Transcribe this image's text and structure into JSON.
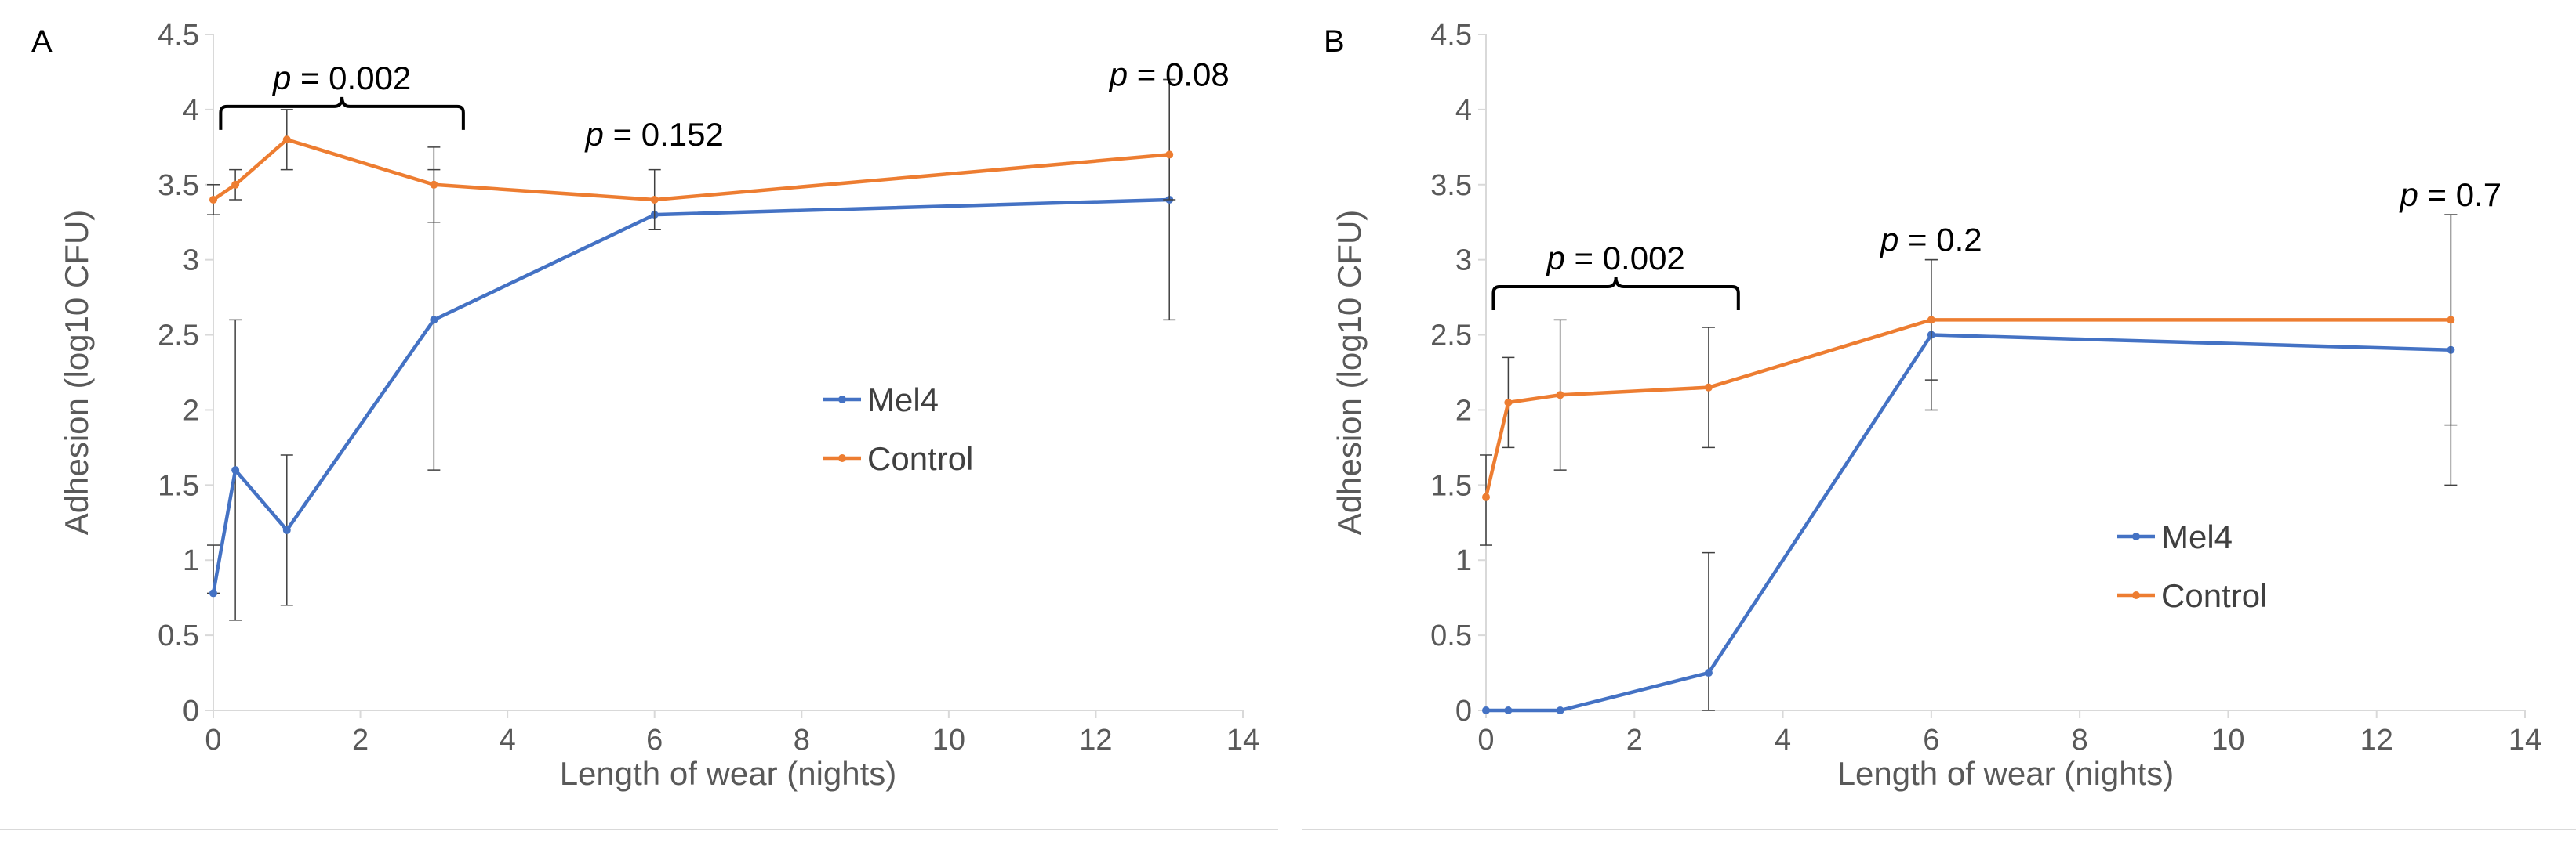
{
  "colors": {
    "mel4": "#4472C4",
    "control": "#ED7D31",
    "axis": "#d9d9d9",
    "text": "#595959",
    "errorbar": "#404040"
  },
  "chart_data": [
    {
      "type": "line",
      "panel_label": "A",
      "xlabel": "Length of wear (nights)",
      "ylabel": "Adhesion (log10 CFU)",
      "xlim": [
        0,
        14
      ],
      "ylim": [
        0,
        4.5
      ],
      "x_ticks": [
        "0",
        "2",
        "4",
        "6",
        "8",
        "10",
        "12",
        "14"
      ],
      "y_ticks": [
        "0",
        "0.5",
        "1",
        "1.5",
        "2",
        "2.5",
        "3",
        "3.5",
        "4",
        "4.5"
      ],
      "grid": false,
      "legend_position": "center-right",
      "series": [
        {
          "name": "Mel4",
          "x": [
            0,
            0.3,
            1,
            3,
            6,
            13
          ],
          "values": [
            0.78,
            1.6,
            1.2,
            2.6,
            3.3,
            3.4
          ],
          "err_low": [
            0.78,
            0.6,
            0.7,
            1.6,
            3.2,
            2.6
          ],
          "err_high": [
            1.1,
            2.6,
            1.7,
            3.6,
            3.4,
            4.2
          ]
        },
        {
          "name": "Control",
          "x": [
            0,
            0.3,
            1,
            3,
            6,
            13
          ],
          "values": [
            3.4,
            3.5,
            3.8,
            3.5,
            3.4,
            3.7
          ],
          "err_low": [
            3.3,
            3.4,
            3.6,
            3.25,
            3.2,
            3.4
          ],
          "err_high": [
            3.5,
            3.6,
            4.0,
            3.75,
            3.6,
            4.2
          ]
        }
      ],
      "annotations": [
        {
          "italic": "p",
          "text": " = 0.002",
          "bracket": [
            0.1,
            3.4
          ],
          "y": 4.0
        },
        {
          "italic": "p",
          "text": " = 0.152",
          "at_x": 6,
          "y": 3.8
        },
        {
          "italic": "p",
          "text": " = 0.08",
          "at_x": 13,
          "y": 4.2
        }
      ]
    },
    {
      "type": "line",
      "panel_label": "B",
      "xlabel": "Length of wear (nights)",
      "ylabel": "Adhesion (log10 CFU)",
      "xlim": [
        0,
        14
      ],
      "ylim": [
        0,
        4.5
      ],
      "x_ticks": [
        "0",
        "2",
        "4",
        "6",
        "8",
        "10",
        "12",
        "14"
      ],
      "y_ticks": [
        "0",
        "0.5",
        "1",
        "1.5",
        "2",
        "2.5",
        "3",
        "3.5",
        "4",
        "4.5"
      ],
      "grid": false,
      "legend_position": "center-right",
      "series": [
        {
          "name": "Mel4",
          "x": [
            0,
            0.3,
            1,
            3,
            6,
            13
          ],
          "values": [
            0,
            0,
            0,
            0.25,
            2.5,
            2.4
          ],
          "err_low": [
            0,
            0,
            0,
            0,
            2.0,
            1.5
          ],
          "err_high": [
            0,
            0,
            0,
            1.05,
            3.0,
            3.3
          ]
        },
        {
          "name": "Control",
          "x": [
            0,
            0.3,
            1,
            3,
            6,
            13
          ],
          "values": [
            1.42,
            2.05,
            2.1,
            2.15,
            2.6,
            2.6
          ],
          "err_low": [
            1.1,
            1.75,
            1.6,
            1.75,
            2.2,
            1.9
          ],
          "err_high": [
            1.7,
            2.35,
            2.6,
            2.55,
            3.0,
            3.3
          ]
        }
      ],
      "annotations": [
        {
          "italic": "p",
          "text": " = 0.002",
          "bracket": [
            0.1,
            3.4
          ],
          "y": 2.8
        },
        {
          "italic": "p",
          "text": " = 0.2",
          "at_x": 6,
          "y": 3.1
        },
        {
          "italic": "p",
          "text": " = 0.7",
          "at_x": 13,
          "y": 3.4
        }
      ]
    }
  ]
}
